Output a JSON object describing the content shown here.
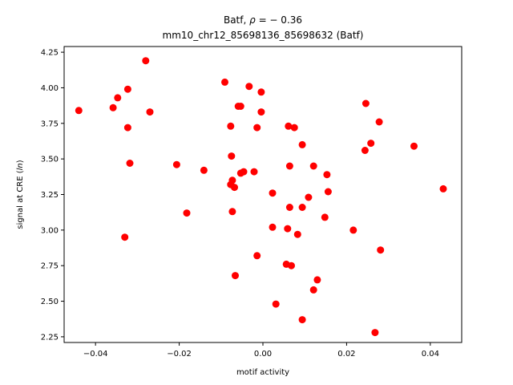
{
  "chart_data": {
    "type": "scatter",
    "title_line1": "Batf, ρ = − 0.36",
    "title_line2": "mm10_chr12_85698136_85698632 (Batf)",
    "xlabel": "motif activity",
    "ylabel": "signal at CRE (ln)",
    "xlim": [
      -0.0475,
      0.0475
    ],
    "ylim": [
      2.21,
      4.29
    ],
    "xticks": [
      -0.04,
      -0.02,
      0.0,
      0.02,
      0.04
    ],
    "xtick_labels": [
      "−0.04",
      "−0.02",
      "0.00",
      "0.02",
      "0.04"
    ],
    "yticks": [
      2.25,
      2.5,
      2.75,
      3.0,
      3.25,
      3.5,
      3.75,
      4.0,
      4.25
    ],
    "ytick_labels": [
      "2.25",
      "2.50",
      "2.75",
      "3.00",
      "3.25",
      "3.50",
      "3.75",
      "4.00",
      "4.25"
    ],
    "grid": false,
    "marker_color": "#ff0000",
    "points": [
      {
        "x": -0.044,
        "y": 3.84
      },
      {
        "x": -0.0358,
        "y": 3.86
      },
      {
        "x": -0.0347,
        "y": 3.93
      },
      {
        "x": -0.0323,
        "y": 3.99
      },
      {
        "x": -0.0323,
        "y": 3.72
      },
      {
        "x": -0.0318,
        "y": 3.47
      },
      {
        "x": -0.033,
        "y": 2.95
      },
      {
        "x": -0.028,
        "y": 4.19
      },
      {
        "x": -0.027,
        "y": 3.83
      },
      {
        "x": -0.0206,
        "y": 3.46
      },
      {
        "x": -0.0182,
        "y": 3.12
      },
      {
        "x": -0.0141,
        "y": 3.42
      },
      {
        "x": -0.0091,
        "y": 4.04
      },
      {
        "x": -0.0077,
        "y": 3.73
      },
      {
        "x": -0.0075,
        "y": 3.52
      },
      {
        "x": -0.0077,
        "y": 3.32
      },
      {
        "x": -0.0073,
        "y": 3.35
      },
      {
        "x": -0.0068,
        "y": 3.3
      },
      {
        "x": -0.0073,
        "y": 3.13
      },
      {
        "x": -0.0066,
        "y": 2.68
      },
      {
        "x": -0.0059,
        "y": 3.87
      },
      {
        "x": -0.0053,
        "y": 3.87
      },
      {
        "x": -0.0053,
        "y": 3.4
      },
      {
        "x": -0.0046,
        "y": 3.41
      },
      {
        "x": -0.0033,
        "y": 4.01
      },
      {
        "x": -0.0021,
        "y": 3.41
      },
      {
        "x": -0.0014,
        "y": 3.72
      },
      {
        "x": -0.0004,
        "y": 3.97
      },
      {
        "x": -0.0004,
        "y": 3.83
      },
      {
        "x": -0.0014,
        "y": 2.82
      },
      {
        "x": 0.0023,
        "y": 3.26
      },
      {
        "x": 0.0023,
        "y": 3.02
      },
      {
        "x": 0.0031,
        "y": 2.48
      },
      {
        "x": 0.0061,
        "y": 3.73
      },
      {
        "x": 0.0064,
        "y": 3.45
      },
      {
        "x": 0.0064,
        "y": 3.16
      },
      {
        "x": 0.0059,
        "y": 3.01
      },
      {
        "x": 0.0056,
        "y": 2.76
      },
      {
        "x": 0.0068,
        "y": 2.75
      },
      {
        "x": 0.0075,
        "y": 3.72
      },
      {
        "x": 0.0083,
        "y": 2.97
      },
      {
        "x": 0.0094,
        "y": 3.6
      },
      {
        "x": 0.0094,
        "y": 3.16
      },
      {
        "x": 0.0094,
        "y": 2.37
      },
      {
        "x": 0.0109,
        "y": 3.23
      },
      {
        "x": 0.0121,
        "y": 3.45
      },
      {
        "x": 0.0121,
        "y": 2.58
      },
      {
        "x": 0.013,
        "y": 2.65
      },
      {
        "x": 0.0148,
        "y": 3.09
      },
      {
        "x": 0.0153,
        "y": 3.39
      },
      {
        "x": 0.0156,
        "y": 3.27
      },
      {
        "x": 0.0216,
        "y": 3.0
      },
      {
        "x": 0.0246,
        "y": 3.89
      },
      {
        "x": 0.0244,
        "y": 3.56
      },
      {
        "x": 0.0258,
        "y": 3.61
      },
      {
        "x": 0.0278,
        "y": 3.76
      },
      {
        "x": 0.0281,
        "y": 2.86
      },
      {
        "x": 0.0268,
        "y": 2.28
      },
      {
        "x": 0.0361,
        "y": 3.59
      },
      {
        "x": 0.0431,
        "y": 3.29
      }
    ]
  }
}
